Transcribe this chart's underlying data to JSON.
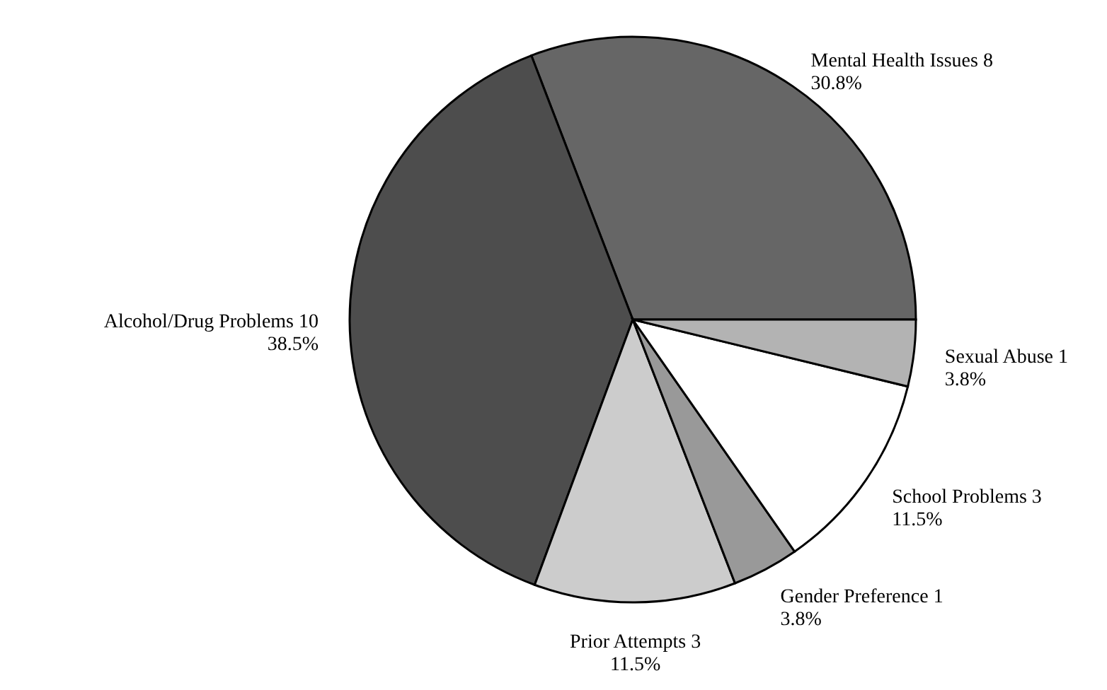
{
  "chart_data": {
    "type": "pie",
    "categories": [
      "Mental Health Issues  8",
      "Alcohol/Drug Problems  10",
      "Prior Attempts  3",
      "Gender Preference  1",
      "School Problems  3",
      "Sexual Abuse  1"
    ],
    "values": [
      30.8,
      38.5,
      11.5,
      3.8,
      11.5,
      3.8
    ],
    "colors": [
      "#666666",
      "#4d4d4d",
      "#cccccc",
      "#999999",
      "#ffffff",
      "#b3b3b3"
    ],
    "value_labels": [
      "30.8%",
      "38.5%",
      "11.5%",
      "3.8%",
      "11.5%",
      "3.8%"
    ]
  }
}
